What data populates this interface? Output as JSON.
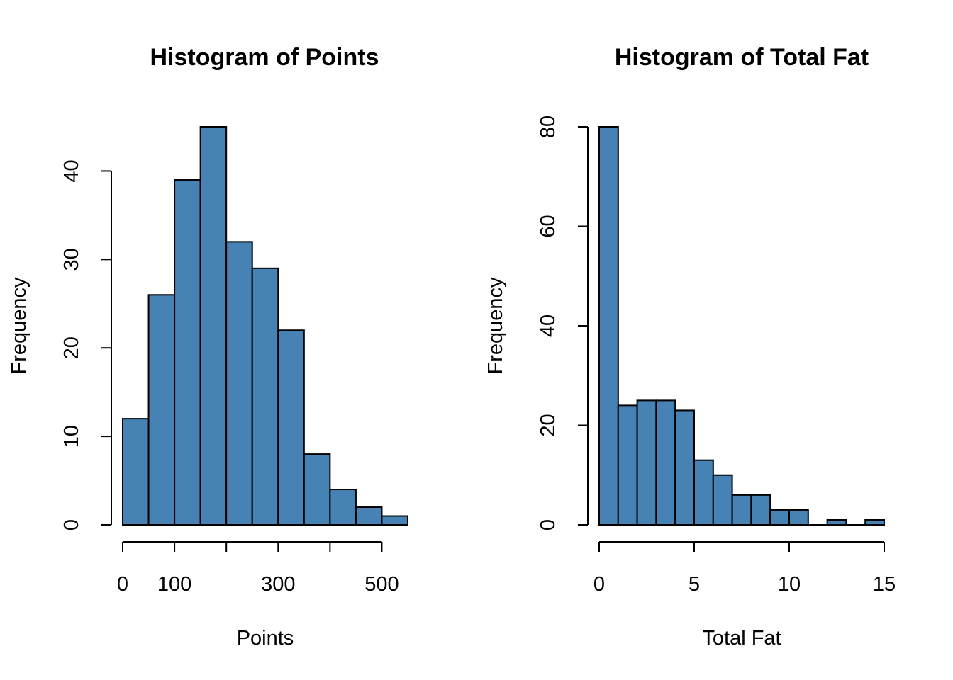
{
  "chart_data": [
    {
      "type": "bar",
      "title": "Histogram of Points",
      "xlabel": "Points",
      "ylabel": "Frequency",
      "bar_color": "#4682B4",
      "bin_edges": [
        0,
        50,
        100,
        150,
        200,
        250,
        300,
        350,
        400,
        450,
        500,
        550
      ],
      "values": [
        12,
        26,
        39,
        45,
        32,
        29,
        22,
        8,
        4,
        2,
        1
      ],
      "xticks": [
        0,
        100,
        200,
        300,
        400,
        500
      ],
      "xtick_labels": [
        "0",
        "100",
        "",
        "300",
        "",
        "500"
      ],
      "yticks": [
        0,
        10,
        20,
        30,
        40
      ],
      "ytick_labels": [
        "0",
        "10",
        "20",
        "30",
        "40"
      ],
      "xlim": [
        0,
        550
      ],
      "ylim": [
        0,
        45
      ],
      "grid": false
    },
    {
      "type": "bar",
      "title": "Histogram of Total Fat",
      "xlabel": "Total Fat",
      "ylabel": "Frequency",
      "bar_color": "#4682B4",
      "bin_edges": [
        0,
        1,
        2,
        3,
        4,
        5,
        6,
        7,
        8,
        9,
        10,
        11,
        12,
        13,
        14,
        15
      ],
      "values": [
        80,
        24,
        25,
        25,
        23,
        13,
        10,
        6,
        6,
        3,
        3,
        0,
        1,
        0,
        1
      ],
      "xticks": [
        0,
        5,
        10,
        15
      ],
      "xtick_labels": [
        "0",
        "5",
        "10",
        "15"
      ],
      "yticks": [
        0,
        20,
        40,
        60,
        80
      ],
      "ytick_labels": [
        "0",
        "20",
        "40",
        "60",
        "80"
      ],
      "xlim": [
        0,
        15
      ],
      "ylim": [
        0,
        80
      ],
      "grid": false
    }
  ]
}
